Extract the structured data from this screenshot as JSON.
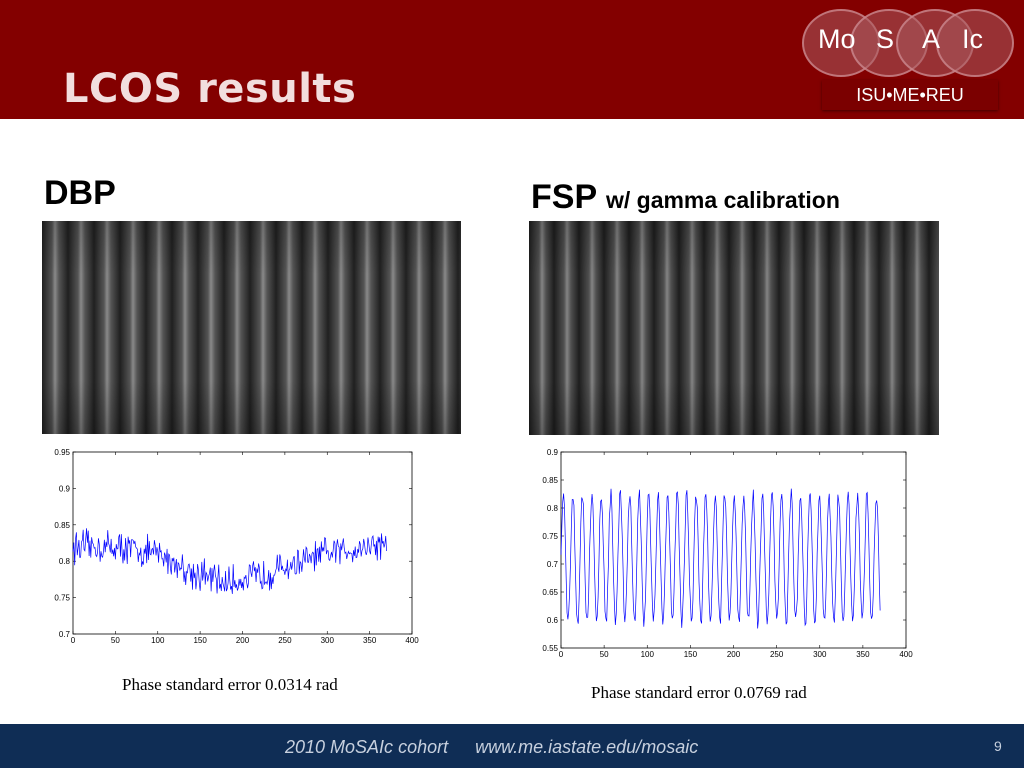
{
  "slide": {
    "title": "LCOS results",
    "page_number": "9"
  },
  "logo": {
    "letters": [
      "Mo",
      "S",
      "A",
      "Ic"
    ],
    "subtitle": "ISU•ME•REU"
  },
  "left": {
    "label": "DBP",
    "caption": "Phase standard error 0.0314 rad"
  },
  "right": {
    "label": "FSP",
    "label_suffix": "w/ gamma calibration",
    "caption": "Phase standard error 0.0769 rad"
  },
  "footer": {
    "cohort": "2010 MoSAIc cohort",
    "url": "www.me.iastate.edu/mosaic"
  },
  "colors": {
    "header": "#830000",
    "footer": "#0f2d55",
    "trace": "#0000ff"
  },
  "chart_data": [
    {
      "type": "line",
      "x_ticks": [
        "0",
        "50",
        "100",
        "150",
        "200",
        "250",
        "300",
        "350",
        "400"
      ],
      "y_ticks": [
        "0.7",
        "0.75",
        "0.8",
        "0.85",
        "0.9",
        "0.95"
      ],
      "xlim": [
        0,
        400
      ],
      "ylim": [
        0.7,
        0.95
      ],
      "grid": false,
      "series": [
        {
          "x_range": [
            0,
            370
          ],
          "trend": [
            [
              0,
              0.82
            ],
            [
              50,
              0.82
            ],
            [
              100,
              0.81
            ],
            [
              140,
              0.785
            ],
            [
              180,
              0.77
            ],
            [
              220,
              0.78
            ],
            [
              260,
              0.795
            ],
            [
              300,
              0.81
            ],
            [
              340,
              0.82
            ],
            [
              370,
              0.825
            ]
          ],
          "noise_amplitude": 0.028
        }
      ]
    },
    {
      "type": "line",
      "x_ticks": [
        "0",
        "50",
        "100",
        "150",
        "200",
        "250",
        "300",
        "350",
        "400"
      ],
      "y_ticks": [
        "0.55",
        "0.6",
        "0.65",
        "0.7",
        "0.75",
        "0.8",
        "0.85",
        "0.9"
      ],
      "xlim": [
        0,
        400
      ],
      "ylim": [
        0.55,
        0.9
      ],
      "grid": false,
      "series": [
        {
          "x_range": [
            0,
            370
          ],
          "center": 0.71,
          "amplitude": 0.115,
          "period": 11
        }
      ]
    }
  ]
}
